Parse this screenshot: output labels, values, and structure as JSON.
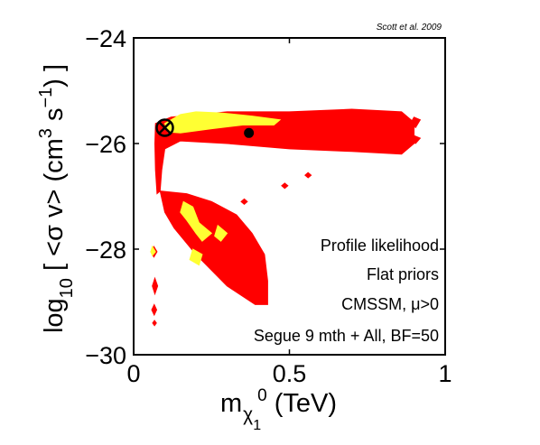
{
  "chart_data": {
    "type": "scatter",
    "credit": "Scott et al. 2009",
    "xlabel": {
      "main": "m",
      "sub": "χ",
      "subsub": "1",
      "sup": "0",
      "unit": " (TeV)"
    },
    "ylabel": {
      "pre": "log",
      "sub": "10",
      "mid": " [ <σ v> (cm",
      "sup1": "3",
      "mid2": " s",
      "sup2": "−1",
      "post": ") ]"
    },
    "xlim": [
      0,
      1
    ],
    "ylim": [
      -30,
      -24
    ],
    "xticks": [
      0,
      0.5,
      1
    ],
    "xtick_labels": [
      "0",
      "0.5",
      "1"
    ],
    "yticks": [
      -30,
      -28,
      -26,
      -24
    ],
    "ytick_labels": [
      "−30",
      "−28",
      "−26",
      "−24"
    ],
    "annotations": [
      "Profile likelihood",
      "Flat priors",
      "CMSSM, μ>0",
      "Segue 9 mth + All, BF=50"
    ],
    "colors": {
      "outer": "#ff0000",
      "inner": "#ffff33",
      "marker": "#000000"
    },
    "markers": {
      "best_fit": {
        "x": 0.1,
        "y": -25.7,
        "symbol": "circled-x"
      },
      "posterior_mean": {
        "x": 0.37,
        "y": -25.8,
        "symbol": "filled-dot"
      }
    },
    "regions": {
      "outer": [
        [
          [
            0.07,
            -25.62
          ],
          [
            0.12,
            -25.5
          ],
          [
            0.3,
            -25.4
          ],
          [
            0.5,
            -25.4
          ],
          [
            0.7,
            -25.35
          ],
          [
            0.86,
            -25.4
          ],
          [
            0.9,
            -25.6
          ],
          [
            0.9,
            -26.0
          ],
          [
            0.86,
            -26.2
          ],
          [
            0.7,
            -26.15
          ],
          [
            0.5,
            -26.1
          ],
          [
            0.3,
            -26.0
          ],
          [
            0.15,
            -25.95
          ],
          [
            0.1,
            -26.1
          ],
          [
            0.09,
            -26.5
          ],
          [
            0.085,
            -26.9
          ],
          [
            0.075,
            -26.95
          ],
          [
            0.07,
            -26.5
          ],
          [
            0.068,
            -26.0
          ]
        ],
        [
          [
            0.085,
            -26.9
          ],
          [
            0.17,
            -26.95
          ],
          [
            0.25,
            -27.1
          ],
          [
            0.33,
            -27.35
          ],
          [
            0.38,
            -27.7
          ],
          [
            0.42,
            -28.1
          ],
          [
            0.43,
            -28.6
          ],
          [
            0.43,
            -29.05
          ],
          [
            0.39,
            -29.05
          ],
          [
            0.3,
            -28.7
          ],
          [
            0.2,
            -28.1
          ],
          [
            0.13,
            -27.6
          ],
          [
            0.1,
            -27.3
          ]
        ],
        [
          [
            0.9,
            -25.5
          ],
          [
            0.92,
            -25.55
          ],
          [
            0.905,
            -25.7
          ],
          [
            0.89,
            -25.6
          ]
        ],
        [
          [
            0.9,
            -25.85
          ],
          [
            0.92,
            -25.9
          ],
          [
            0.905,
            -26.0
          ],
          [
            0.89,
            -25.95
          ]
        ],
        [
          [
            0.065,
            -27.95
          ],
          [
            0.075,
            -28.05
          ],
          [
            0.065,
            -28.15
          ],
          [
            0.055,
            -28.05
          ]
        ],
        [
          [
            0.068,
            -28.55
          ],
          [
            0.077,
            -28.7
          ],
          [
            0.068,
            -28.85
          ],
          [
            0.06,
            -28.7
          ]
        ],
        [
          [
            0.066,
            -29.05
          ],
          [
            0.074,
            -29.15
          ],
          [
            0.066,
            -29.25
          ],
          [
            0.058,
            -29.15
          ]
        ],
        [
          [
            0.067,
            -29.35
          ],
          [
            0.073,
            -29.4
          ],
          [
            0.067,
            -29.45
          ],
          [
            0.061,
            -29.4
          ]
        ],
        [
          [
            0.56,
            -26.55
          ],
          [
            0.57,
            -26.6
          ],
          [
            0.56,
            -26.65
          ],
          [
            0.55,
            -26.6
          ]
        ],
        [
          [
            0.485,
            -26.75
          ],
          [
            0.495,
            -26.8
          ],
          [
            0.485,
            -26.85
          ],
          [
            0.475,
            -26.8
          ]
        ],
        [
          [
            0.355,
            -27.05
          ],
          [
            0.365,
            -27.1
          ],
          [
            0.355,
            -27.15
          ],
          [
            0.345,
            -27.1
          ]
        ]
      ],
      "inner": [
        [
          [
            0.1,
            -25.62
          ],
          [
            0.15,
            -25.45
          ],
          [
            0.2,
            -25.4
          ],
          [
            0.28,
            -25.42
          ],
          [
            0.38,
            -25.48
          ],
          [
            0.47,
            -25.55
          ],
          [
            0.45,
            -25.65
          ],
          [
            0.35,
            -25.65
          ],
          [
            0.25,
            -25.72
          ],
          [
            0.15,
            -25.8
          ],
          [
            0.11,
            -25.78
          ]
        ],
        [
          [
            0.16,
            -27.1
          ],
          [
            0.19,
            -27.2
          ],
          [
            0.21,
            -27.5
          ],
          [
            0.25,
            -27.7
          ],
          [
            0.22,
            -27.85
          ],
          [
            0.2,
            -27.7
          ],
          [
            0.17,
            -27.45
          ],
          [
            0.15,
            -27.3
          ]
        ],
        [
          [
            0.19,
            -28.0
          ],
          [
            0.22,
            -28.1
          ],
          [
            0.21,
            -28.3
          ],
          [
            0.18,
            -28.2
          ]
        ],
        [
          [
            0.27,
            -27.55
          ],
          [
            0.3,
            -27.7
          ],
          [
            0.28,
            -27.85
          ],
          [
            0.26,
            -27.75
          ]
        ],
        [
          [
            0.06,
            -27.95
          ],
          [
            0.07,
            -28.05
          ],
          [
            0.06,
            -28.12
          ],
          [
            0.055,
            -28.05
          ]
        ]
      ]
    }
  }
}
